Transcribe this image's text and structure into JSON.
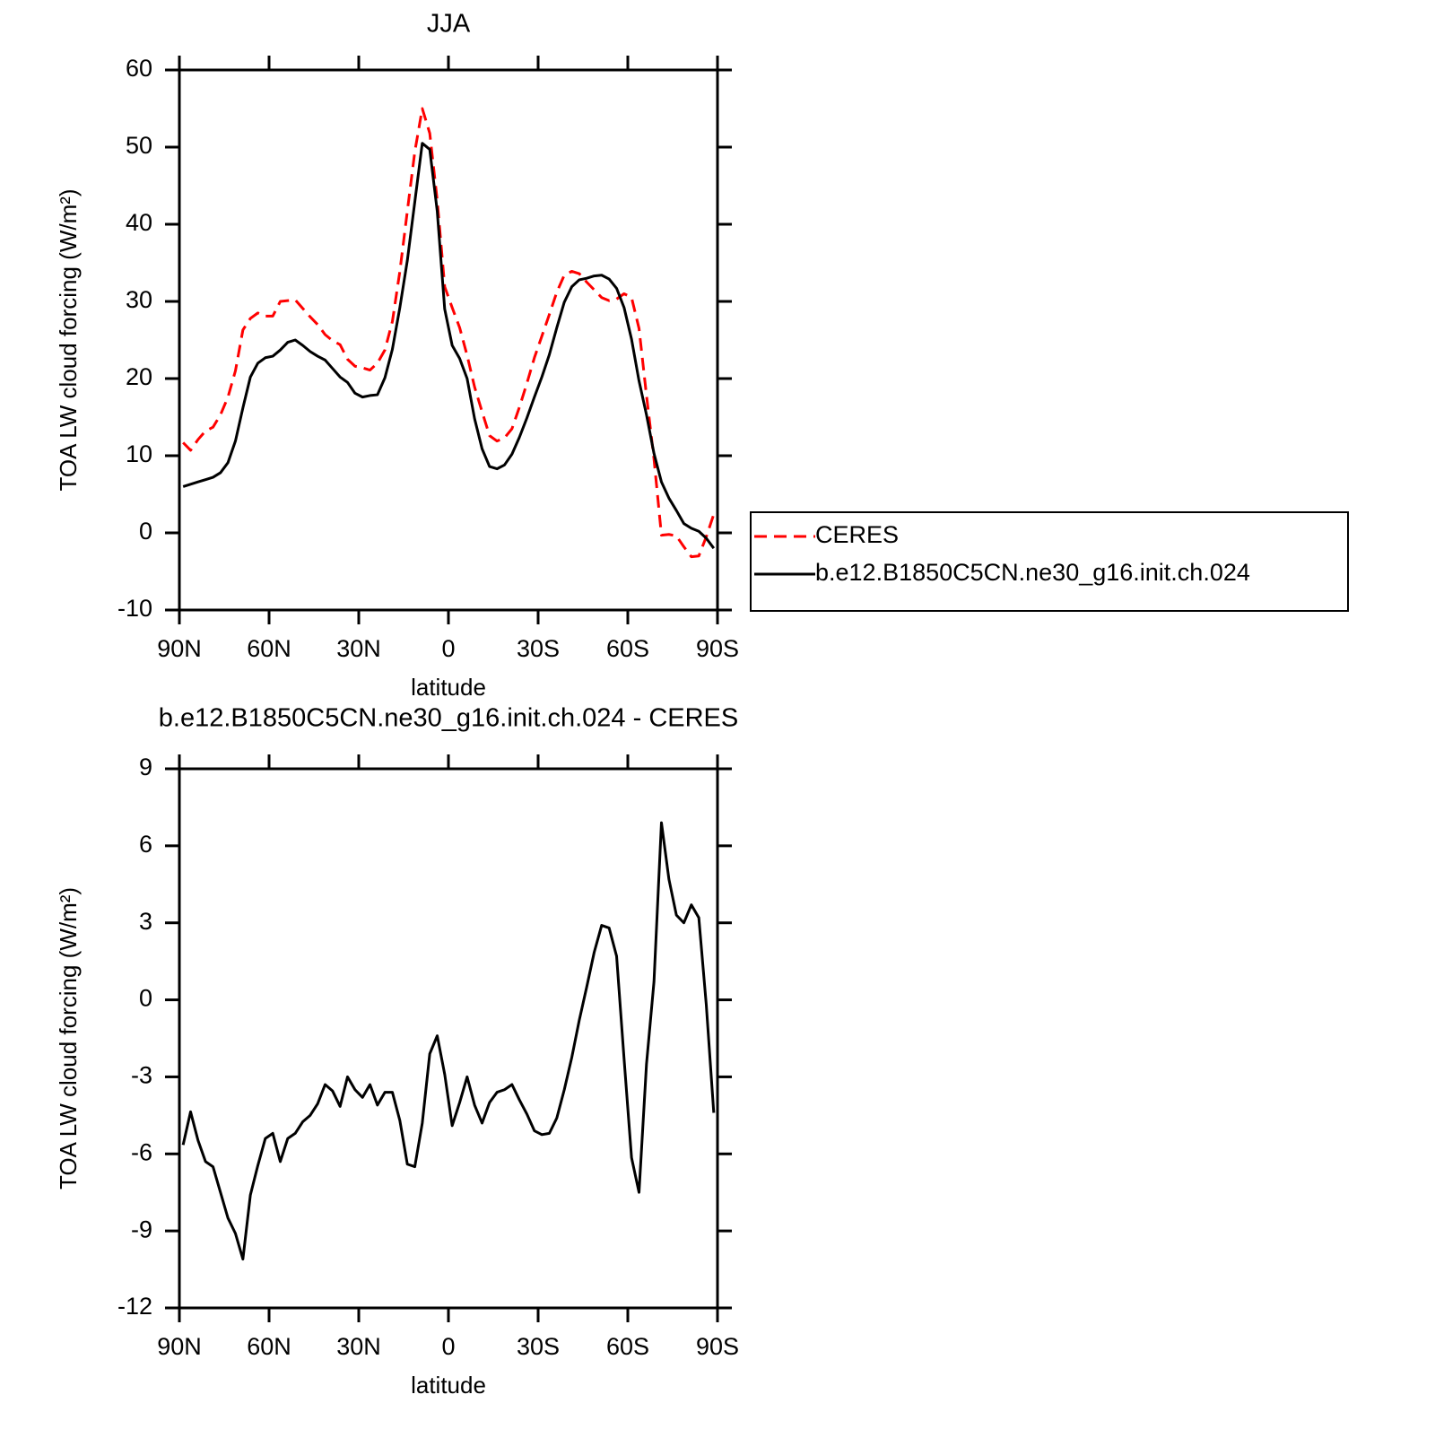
{
  "chart_data": [
    {
      "type": "line",
      "title": "JJA",
      "xlabel": "latitude",
      "ylabel": "TOA LW cloud forcing (W/m²)",
      "x": [
        88.75,
        86.25,
        83.75,
        81.25,
        78.75,
        76.25,
        73.75,
        71.25,
        68.75,
        66.25,
        63.75,
        61.25,
        58.75,
        56.25,
        53.75,
        51.25,
        48.75,
        46.25,
        43.75,
        41.25,
        38.75,
        36.25,
        33.75,
        31.25,
        28.75,
        26.25,
        23.75,
        21.25,
        18.75,
        16.25,
        13.75,
        11.25,
        8.75,
        6.25,
        3.75,
        1.25,
        -1.25,
        -3.75,
        -6.25,
        -8.75,
        -11.25,
        -13.75,
        -16.25,
        -18.75,
        -21.25,
        -23.75,
        -26.25,
        -28.75,
        -31.25,
        -33.75,
        -36.25,
        -38.75,
        -41.25,
        -43.75,
        -46.25,
        -48.75,
        -51.25,
        -53.75,
        -56.25,
        -58.75,
        -61.25,
        -63.75,
        -66.25,
        -68.75,
        -71.25,
        -73.75,
        -76.25,
        -78.75,
        -81.25,
        -83.75,
        -86.25,
        -88.75
      ],
      "series": [
        {
          "name": "CERES",
          "color": "#ff0000",
          "linestyle": "dashed",
          "values": [
            11.7,
            10.7,
            12.1,
            13.2,
            13.7,
            15.3,
            17.6,
            21.0,
            26.3,
            27.8,
            28.5,
            28.1,
            28.1,
            30.0,
            30.1,
            30.2,
            29.1,
            28.0,
            27.0,
            25.7,
            24.9,
            24.4,
            22.5,
            21.6,
            21.4,
            21.1,
            22.0,
            23.7,
            27.4,
            33.9,
            41.7,
            49.4,
            55.0,
            51.8,
            43.1,
            31.9,
            29.2,
            26.6,
            23.0,
            18.9,
            15.7,
            12.6,
            11.9,
            12.3,
            13.5,
            16.3,
            19.4,
            22.7,
            25.5,
            28.3,
            31.2,
            33.4,
            33.9,
            33.6,
            32.5,
            31.5,
            30.5,
            30.1,
            30.3,
            31.0,
            30.5,
            26.5,
            17.8,
            9.6,
            -0.3,
            -0.2,
            -0.4,
            -1.8,
            -3.1,
            -3.0,
            -0.5,
            2.4
          ]
        },
        {
          "name": "b.e12.B1850C5CN.ne30_g16.init.ch.024",
          "color": "#000000",
          "linestyle": "solid",
          "values": [
            6.0,
            6.3,
            6.6,
            6.9,
            7.2,
            7.8,
            9.1,
            11.9,
            16.2,
            20.2,
            22.0,
            22.7,
            22.9,
            23.7,
            24.7,
            25.0,
            24.3,
            23.5,
            22.9,
            22.4,
            21.3,
            20.2,
            19.5,
            18.1,
            17.6,
            17.8,
            17.9,
            20.1,
            23.8,
            29.2,
            35.3,
            42.9,
            50.5,
            49.7,
            41.7,
            29.0,
            24.3,
            22.6,
            20.0,
            14.8,
            10.9,
            8.6,
            8.3,
            8.8,
            10.2,
            12.4,
            14.9,
            17.6,
            20.2,
            23.1,
            26.6,
            29.9,
            31.9,
            32.8,
            33.0,
            33.3,
            33.4,
            32.9,
            31.7,
            29.2,
            25.1,
            19.7,
            15.3,
            10.3,
            6.6,
            4.5,
            2.9,
            1.2,
            0.6,
            0.2,
            -0.7,
            -2.0
          ]
        }
      ],
      "xlim": [
        90,
        -90
      ],
      "xticks": [
        {
          "value": 90,
          "label": "90N"
        },
        {
          "value": 60,
          "label": "60N"
        },
        {
          "value": 30,
          "label": "30N"
        },
        0,
        {
          "value": -30,
          "label": "30S"
        },
        {
          "value": -60,
          "label": "60S"
        },
        {
          "value": -90,
          "label": "90S"
        }
      ],
      "ylim": [
        -10,
        60
      ],
      "yticks": [
        -10,
        0,
        10,
        20,
        30,
        40,
        50,
        60
      ],
      "legend": "right"
    },
    {
      "type": "line",
      "title": "b.e12.B1850C5CN.ne30_g16.init.ch.024 - CERES",
      "xlabel": "latitude",
      "ylabel": "TOA LW cloud forcing (W/m²)",
      "x": [
        88.75,
        86.25,
        83.75,
        81.25,
        78.75,
        76.25,
        73.75,
        71.25,
        68.75,
        66.25,
        63.75,
        61.25,
        58.75,
        56.25,
        53.75,
        51.25,
        48.75,
        46.25,
        43.75,
        41.25,
        38.75,
        36.25,
        33.75,
        31.25,
        28.75,
        26.25,
        23.75,
        21.25,
        18.75,
        16.25,
        13.75,
        11.25,
        8.75,
        6.25,
        3.75,
        1.25,
        -1.25,
        -3.75,
        -6.25,
        -8.75,
        -11.25,
        -13.75,
        -16.25,
        -18.75,
        -21.25,
        -23.75,
        -26.25,
        -28.75,
        -31.25,
        -33.75,
        -36.25,
        -38.75,
        -41.25,
        -43.75,
        -46.25,
        -48.75,
        -51.25,
        -53.75,
        -56.25,
        -58.75,
        -61.25,
        -63.75,
        -66.25,
        -68.75,
        -71.25,
        -73.75,
        -76.25,
        -78.75,
        -81.25,
        -83.75,
        -86.25,
        -88.75
      ],
      "color": "#000000",
      "values": [
        -5.65,
        -4.36,
        -5.48,
        -6.3,
        -6.5,
        -7.5,
        -8.5,
        -9.1,
        -10.1,
        -7.6,
        -6.45,
        -5.4,
        -5.2,
        -6.3,
        -5.4,
        -5.2,
        -4.75,
        -4.5,
        -4.05,
        -3.3,
        -3.55,
        -4.15,
        -3.0,
        -3.5,
        -3.8,
        -3.3,
        -4.1,
        -3.6,
        -3.6,
        -4.7,
        -6.4,
        -6.5,
        -4.8,
        -2.1,
        -1.4,
        -2.9,
        -4.9,
        -4.0,
        -3.0,
        -4.1,
        -4.8,
        -4.0,
        -3.6,
        -3.5,
        -3.3,
        -3.9,
        -4.45,
        -5.1,
        -5.25,
        -5.2,
        -4.6,
        -3.5,
        -2.25,
        -0.8,
        0.5,
        1.85,
        2.9,
        2.8,
        1.7,
        -2.3,
        -6.15,
        -7.5,
        -2.5,
        0.7,
        6.9,
        4.7,
        3.3,
        3.0,
        3.7,
        3.2,
        -0.2,
        -4.4
      ],
      "xlim": [
        90,
        -90
      ],
      "xticks": [
        {
          "value": 90,
          "label": "90N"
        },
        {
          "value": 60,
          "label": "60N"
        },
        {
          "value": 30,
          "label": "30N"
        },
        0,
        {
          "value": -30,
          "label": "30S"
        },
        {
          "value": -60,
          "label": "60S"
        },
        {
          "value": -90,
          "label": "90S"
        }
      ],
      "ylim": [
        -12,
        9
      ],
      "yticks": [
        -12,
        -9,
        -6,
        -3,
        0,
        3,
        6,
        9
      ]
    }
  ]
}
